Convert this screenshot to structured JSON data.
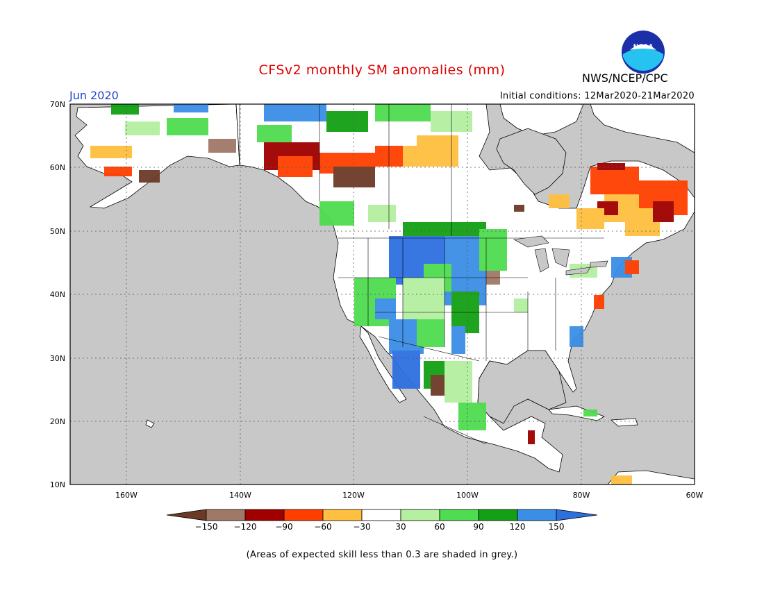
{
  "title": "CFSv2 monthly SM anomalies (mm)",
  "month_label": "Jun 2020",
  "initial_conditions": "Initial conditions: 12Mar2020-21Mar2020",
  "agency": "NWS/NCEP/CPC",
  "logo_text": "NOAA",
  "footnote": "(Areas of expected skill less than 0.3 are shaded in grey.)",
  "map": {
    "lat_range": [
      10,
      70
    ],
    "lon_range": [
      -170,
      -60
    ],
    "lat_labels": [
      "70N",
      "60N",
      "50N",
      "40N",
      "30N",
      "20N",
      "10N"
    ],
    "lon_labels": [
      "160W",
      "140W",
      "120W",
      "100W",
      "80W",
      "60W"
    ]
  },
  "legend": {
    "colors": [
      "#6b3a26",
      "#a07868",
      "#a00000",
      "#ff3f00",
      "#ffbf40",
      "#ffffff",
      "#b4f0a0",
      "#50dc50",
      "#14a014",
      "#3a8ee6",
      "#2e6fe0"
    ],
    "labels": [
      "−150",
      "−120",
      "−90",
      "−60",
      "−30",
      "30",
      "60",
      "90",
      "120",
      "150"
    ]
  },
  "colors": {
    "ocean": "#c8c8c8",
    "land": "#ffffff"
  }
}
